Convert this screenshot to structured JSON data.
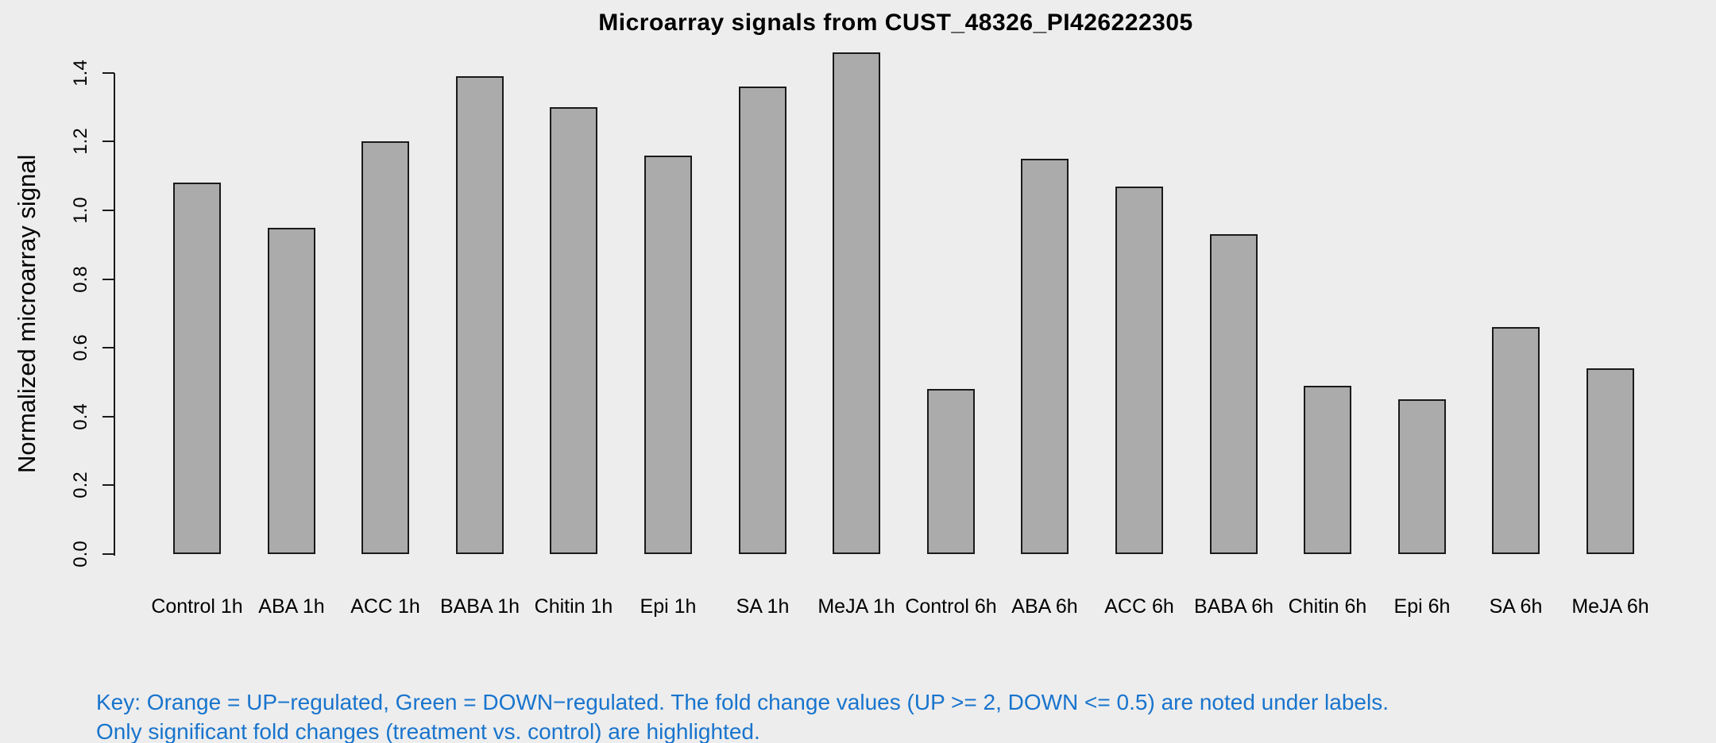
{
  "title": "Microarray signals from CUST_48326_PI426222305",
  "chart_data": {
    "type": "bar",
    "title": "Microarray signals from CUST_48326_PI426222305",
    "xlabel": "",
    "ylabel": "Normalized microarray signal",
    "categories": [
      "Control 1h",
      "ABA 1h",
      "ACC 1h",
      "BABA 1h",
      "Chitin 1h",
      "Epi 1h",
      "SA 1h",
      "MeJA 1h",
      "Control 6h",
      "ABA 6h",
      "ACC 6h",
      "BABA 6h",
      "Chitin 6h",
      "Epi 6h",
      "SA 6h",
      "MeJA 6h"
    ],
    "values": [
      1.08,
      0.95,
      1.2,
      1.39,
      1.3,
      1.16,
      1.36,
      1.46,
      0.48,
      1.15,
      1.07,
      0.93,
      0.49,
      0.45,
      0.66,
      0.54
    ],
    "yticks": [
      "0.0",
      "0.2",
      "0.4",
      "0.6",
      "0.8",
      "1.0",
      "1.2",
      "1.4"
    ],
    "ytick_values": [
      0.0,
      0.2,
      0.4,
      0.6,
      0.8,
      1.0,
      1.2,
      1.4
    ],
    "ylim": [
      0,
      1.5
    ],
    "grid": false,
    "legend": "none",
    "colors": {
      "background": "#EDEDED",
      "bar_fill": "#ABABAB",
      "bar_border": "#1A1A1A",
      "axis": "#1A1A1A",
      "text": "#000000"
    }
  },
  "key": {
    "color": "#1874CD",
    "line1": "Key: Orange = UP−regulated, Green = DOWN−regulated. The fold change values (UP >= 2, DOWN <= 0.5) are noted under labels.",
    "line2": "Only significant fold changes (treatment vs. control) are highlighted."
  }
}
